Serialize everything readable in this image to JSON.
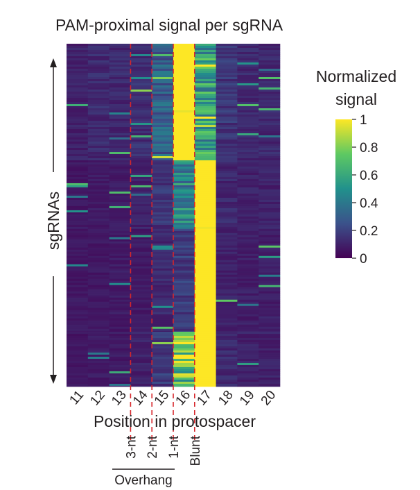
{
  "chart_data": {
    "type": "heatmap",
    "title": "PAM-proximal signal per sgRNA",
    "xlabel": "Position in protospacer",
    "ylabel": "sgRNAs",
    "categories": [
      "11",
      "12",
      "13",
      "14",
      "15",
      "16",
      "17",
      "18",
      "19",
      "20"
    ],
    "colorbar": {
      "title": [
        "Normalized",
        "signal"
      ],
      "range": [
        0,
        1
      ],
      "ticks": [
        {
          "value": 0,
          "label": "0"
        },
        {
          "value": 0.2,
          "label": "0.2"
        },
        {
          "value": 0.4,
          "label": "0.4"
        },
        {
          "value": 0.6,
          "label": "0.6"
        },
        {
          "value": 0.8,
          "label": "0.8"
        },
        {
          "value": 1,
          "label": "1"
        }
      ],
      "colormap": [
        "#440154",
        "#3b528b",
        "#21918c",
        "#5ec962",
        "#fde725"
      ]
    },
    "cut_site_annotations": {
      "labels": [
        {
          "text": "3-nt",
          "after": "13"
        },
        {
          "text": "2-nt",
          "after": "14"
        },
        {
          "text": "1-nt",
          "after": "15"
        },
        {
          "text": "Blunt",
          "after": "16"
        }
      ],
      "group_label": "Overhang",
      "group_members": [
        "3-nt",
        "2-nt",
        "1-nt"
      ],
      "line_color": "#d7262b"
    },
    "row_groups": [
      {
        "fraction": 0.34,
        "levels": [
          0.1,
          0.13,
          0.12,
          0.14,
          0.3,
          1.0,
          0.55,
          0.16,
          0.12,
          0.12
        ]
      },
      {
        "fraction": 0.2,
        "levels": [
          0.07,
          0.08,
          0.08,
          0.1,
          0.16,
          0.45,
          1.0,
          0.12,
          0.1,
          0.1
        ]
      },
      {
        "fraction": 0.3,
        "levels": [
          0.07,
          0.07,
          0.08,
          0.08,
          0.12,
          0.18,
          1.0,
          0.1,
          0.09,
          0.09
        ]
      },
      {
        "fraction": 0.16,
        "levels": [
          0.07,
          0.08,
          0.08,
          0.1,
          0.18,
          0.72,
          1.0,
          0.12,
          0.1,
          0.1
        ]
      }
    ]
  }
}
